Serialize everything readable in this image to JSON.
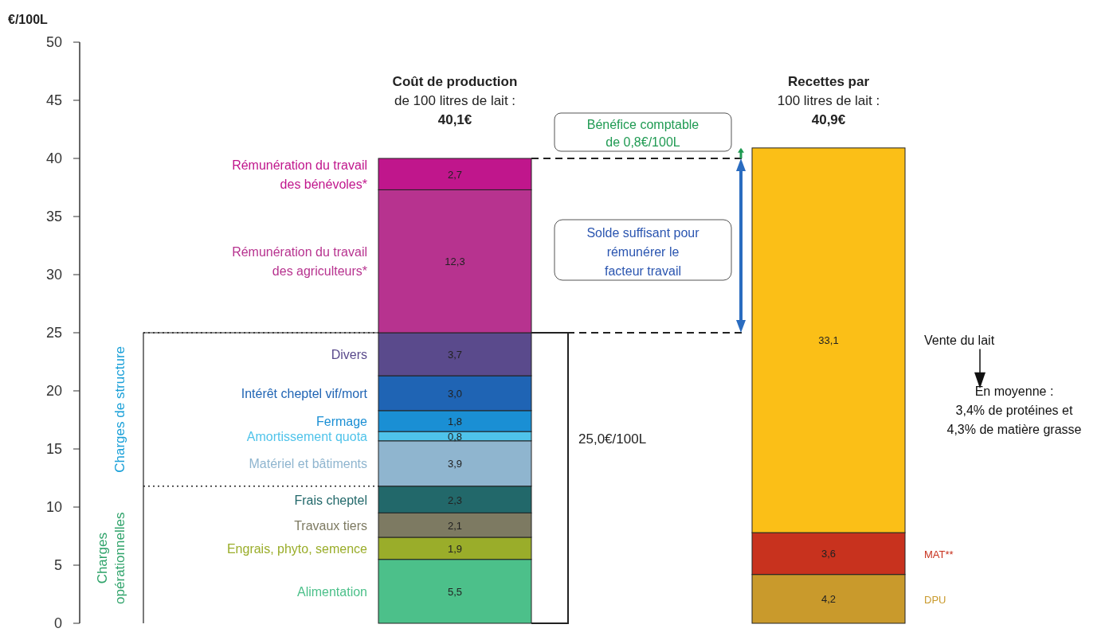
{
  "chart_data": {
    "type": "bar",
    "stacked": true,
    "ylabel": "€/100L",
    "ylim": [
      0,
      50
    ],
    "yticks": [
      0,
      5,
      10,
      15,
      20,
      25,
      30,
      35,
      40,
      45,
      50
    ],
    "categories": [
      null,
      null
    ],
    "series": [
      {
        "name": "Alimentation",
        "color": "#4cc08a",
        "values": [
          5.5,
          null
        ],
        "value_labels": [
          "5,5",
          null
        ]
      },
      {
        "name": "Engrais, phyto, semence",
        "color": "#9aad2a",
        "values": [
          1.9,
          null
        ],
        "value_labels": [
          "1,9",
          null
        ]
      },
      {
        "name": "Travaux tiers",
        "color": "#7d7a62",
        "values": [
          2.1,
          null
        ],
        "value_labels": [
          "2,1",
          null
        ]
      },
      {
        "name": "Frais cheptel",
        "color": "#22686a",
        "values": [
          2.3,
          null
        ],
        "value_labels": [
          "2,3",
          null
        ]
      },
      {
        "name": "Matériel et bâtiments",
        "color": "#8fb5cf",
        "values": [
          3.9,
          null
        ],
        "value_labels": [
          "3,9",
          null
        ]
      },
      {
        "name": "Amortissement quota",
        "color": "#4fc3ea",
        "values": [
          0.8,
          null
        ],
        "value_labels": [
          "0,8",
          null
        ]
      },
      {
        "name": "Fermage",
        "color": "#1a8fd4",
        "values": [
          1.8,
          null
        ],
        "value_labels": [
          "1,8",
          null
        ]
      },
      {
        "name": "Intérêt cheptel vif/mort",
        "color": "#1f64b4",
        "values": [
          3.0,
          null
        ],
        "value_labels": [
          "3,0",
          null
        ]
      },
      {
        "name": "Divers",
        "color": "#5a4a8c",
        "values": [
          3.7,
          null
        ],
        "value_labels": [
          "3,7",
          null
        ]
      },
      {
        "name": "Rémunération du travail\ndes agriculteurs*",
        "color": "#b7338f",
        "values": [
          12.3,
          null
        ],
        "value_labels": [
          "12,3",
          null
        ]
      },
      {
        "name": "Rémunération du travail\ndes bénévoles*",
        "color": "#c0168c",
        "values": [
          2.7,
          null
        ],
        "value_labels": [
          "2,7",
          null
        ]
      },
      {
        "name": "DPU",
        "color": "#c99a2c",
        "values": [
          null,
          4.2
        ],
        "value_labels": [
          null,
          "4,2"
        ]
      },
      {
        "name": "MAT**",
        "color": "#c8321e",
        "values": [
          null,
          3.6
        ],
        "value_labels": [
          null,
          "3,6"
        ]
      },
      {
        "name": "Vente du lait",
        "color": "#fbbf17",
        "values": [
          null,
          33.1
        ],
        "value_labels": [
          null,
          "33,1"
        ]
      }
    ],
    "ref_lines": [
      {
        "axis": "y",
        "value": 40,
        "line_style": "dashed"
      },
      {
        "axis": "y",
        "value": 25,
        "line_style": "dashed"
      },
      {
        "axis": "y",
        "value": 25,
        "line_style": "dotted"
      },
      {
        "axis": "y",
        "value": 11.8,
        "line_style": "dotted"
      }
    ],
    "annotations": [
      "Coût de production\nde 100 litres de lait :\n40,1€",
      "Recettes par\n100 litres de lait :\n40,9€",
      "Bénéfice comptable\nde 0,8€/100L",
      "Solde suffisant pour\nrémunérer le\nfacteur travail",
      "25,0€/100L",
      "En moyenne :\n3,4% de protéines et\n4,3% de matière  grasse",
      "Charges de structure",
      "Charges\nopérationnelles"
    ]
  }
}
